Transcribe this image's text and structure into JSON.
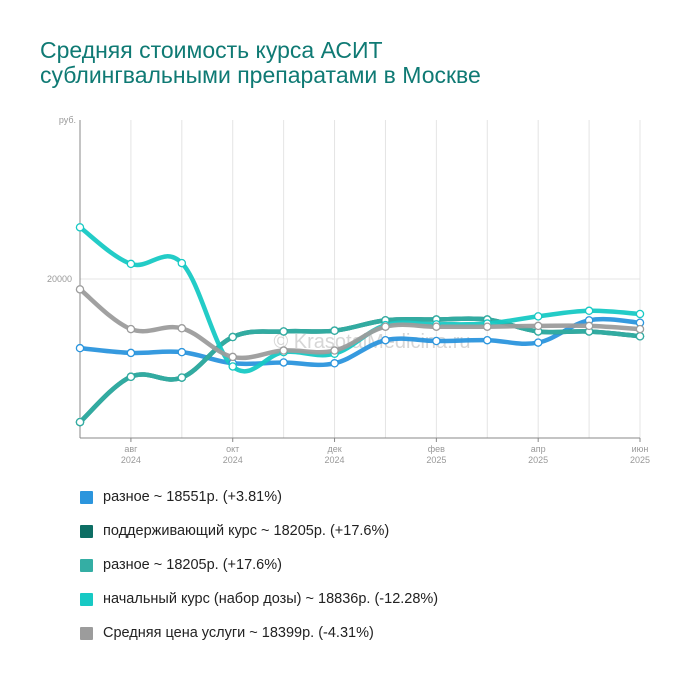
{
  "title_line1": "Средняя стоимость курса АСИТ",
  "title_line2": "сублингвальными препаратами в Москве",
  "watermark": "© KrasotaiMedicina.ru",
  "chart_data": {
    "type": "line",
    "ylabel": "руб.",
    "ylim": [
      10000,
      30000
    ],
    "yticks": [
      {
        "value": 20000,
        "label": "20000"
      }
    ],
    "x": [
      "2024-07",
      "2024-08",
      "2024-09",
      "2024-10",
      "2024-11",
      "2024-12",
      "2025-01",
      "2025-02",
      "2025-03",
      "2025-04",
      "2025-05",
      "2025-06"
    ],
    "xticks": [
      {
        "index": 1,
        "label1": "авг",
        "label2": "2024"
      },
      {
        "index": 3,
        "label1": "окт",
        "label2": "2024"
      },
      {
        "index": 5,
        "label1": "дек",
        "label2": "2024"
      },
      {
        "index": 7,
        "label1": "фев",
        "label2": "2025"
      },
      {
        "index": 9,
        "label1": "апр",
        "label2": "2025"
      },
      {
        "index": 11,
        "label1": "июн",
        "label2": "2025"
      }
    ],
    "grid": true,
    "legend_position": "bottom",
    "series": [
      {
        "name": "разное ~ 18551р. (+3.81%)",
        "color": "#2b95dd",
        "values": [
          15650,
          15350,
          15400,
          14700,
          14750,
          14700,
          16150,
          16100,
          16150,
          16000,
          17400,
          17250
        ]
      },
      {
        "name": "поддерживающий курс ~ 18205р. (+17.6%)",
        "color": "#0d6e64",
        "values": [
          11000,
          13850,
          13800,
          16350,
          16700,
          16750,
          17400,
          17450,
          17450,
          16700,
          16700,
          16400
        ]
      },
      {
        "name": "разное ~ 18205р. (+17.6%)",
        "color": "#34aea4",
        "values": [
          11000,
          13850,
          13800,
          16350,
          16700,
          16750,
          17400,
          17450,
          17450,
          16700,
          16700,
          16400
        ]
      },
      {
        "name": "начальный курс (набор дозы) ~ 18836р. (-12.28%)",
        "color": "#17c9c4",
        "values": [
          23250,
          20950,
          21000,
          14500,
          15400,
          15300,
          17100,
          17150,
          17200,
          17650,
          18000,
          17800
        ]
      },
      {
        "name": "Средняя цена услуги ~ 18399р. (-4.31%)",
        "color": "#9c9c9c",
        "values": [
          19350,
          16850,
          16900,
          15100,
          15500,
          15500,
          17000,
          17000,
          17000,
          17050,
          17050,
          16850
        ]
      }
    ]
  }
}
